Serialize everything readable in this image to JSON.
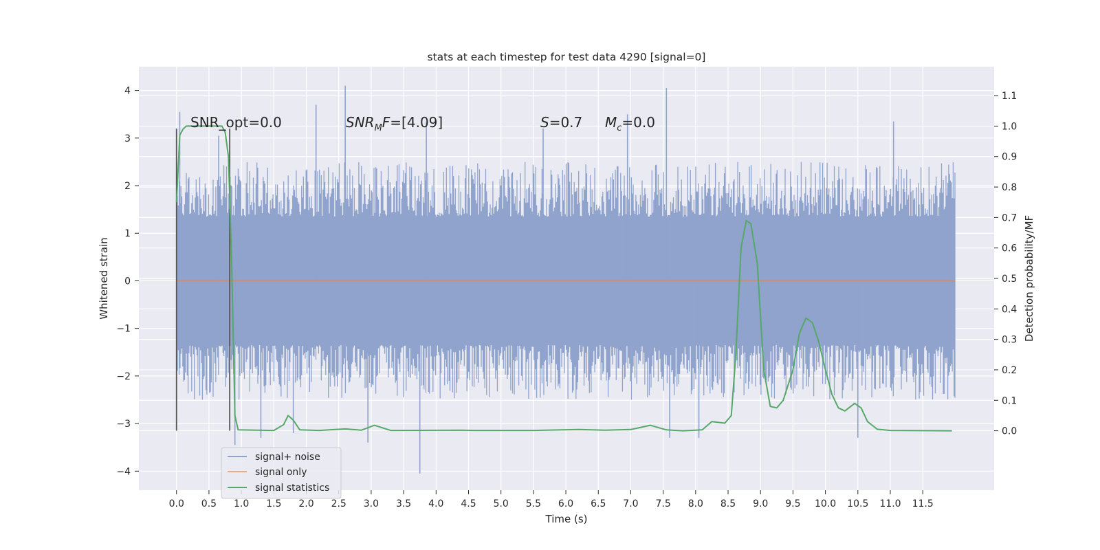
{
  "chart_data": {
    "type": "line",
    "title": "stats at each timestep for test data 4290 [signal=0]",
    "xlabel": "Time (s)",
    "ylabel_left": "Whitened strain",
    "ylabel_right": "Detection probability/MF",
    "xlim": [
      -0.58,
      12.6
    ],
    "ylim_left": [
      -4.4,
      4.5
    ],
    "ylim_right": [
      -0.195,
      1.195
    ],
    "x_ticks": [
      "0.0",
      "0.5",
      "1.0",
      "1.5",
      "2.0",
      "2.5",
      "3.0",
      "3.5",
      "4.0",
      "4.5",
      "5.0",
      "5.5",
      "6.0",
      "6.5",
      "7.0",
      "7.5",
      "8.0",
      "8.5",
      "9.0",
      "9.5",
      "10.0",
      "10.5",
      "11.0",
      "11.5"
    ],
    "y_left_ticks": [
      "4",
      "3",
      "2",
      "1",
      "0",
      "−1",
      "−2",
      "−3",
      "−4"
    ],
    "y_right_ticks": [
      "1.1",
      "1.0",
      "0.9",
      "0.8",
      "0.7",
      "0.6",
      "0.5",
      "0.4",
      "0.3",
      "0.2",
      "0.1",
      "0.0"
    ],
    "grid": true,
    "legend_position": "lower-left",
    "annotations": {
      "snr_opt": "SNR_opt=0.0",
      "snr_mf": "=[4.09]",
      "spin": "=0.7",
      "chirp_mass": "=0.0"
    },
    "noise_envelope": {
      "x_start": 0.0,
      "x_end": 12.0,
      "typical_low": -2.0,
      "typical_high": 2.0,
      "spikes": [
        {
          "x": 0.05,
          "y": 3.55
        },
        {
          "x": 0.65,
          "y": 3.05
        },
        {
          "x": 0.9,
          "y": -3.45
        },
        {
          "x": 1.3,
          "y": -3.3
        },
        {
          "x": 1.8,
          "y": -3.2
        },
        {
          "x": 2.15,
          "y": 3.7
        },
        {
          "x": 2.6,
          "y": 4.1
        },
        {
          "x": 2.95,
          "y": -3.4
        },
        {
          "x": 3.75,
          "y": -4.05
        },
        {
          "x": 3.85,
          "y": 3.35
        },
        {
          "x": 5.65,
          "y": 3.2
        },
        {
          "x": 6.95,
          "y": 3.5
        },
        {
          "x": 7.55,
          "y": 4.05
        },
        {
          "x": 7.6,
          "y": -3.3
        },
        {
          "x": 8.05,
          "y": -3.3
        },
        {
          "x": 10.5,
          "y": -3.3
        },
        {
          "x": 11.05,
          "y": 3.35
        }
      ]
    },
    "series": [
      {
        "name": "signal+ noise",
        "color": "#8fa3cd",
        "axis": "left"
      },
      {
        "name": "signal only",
        "color": "#dd8452",
        "axis": "left",
        "values": [
          [
            0.0,
            0.0
          ],
          [
            12.0,
            0.0
          ]
        ]
      },
      {
        "name": "signal statistics",
        "color": "#55a868",
        "axis": "right",
        "points": [
          [
            0.0,
            0.75
          ],
          [
            0.05,
            0.97
          ],
          [
            0.1,
            0.99
          ],
          [
            0.15,
            1.0
          ],
          [
            0.7,
            1.0
          ],
          [
            0.75,
            0.98
          ],
          [
            0.8,
            0.9
          ],
          [
            0.85,
            0.55
          ],
          [
            0.9,
            0.05
          ],
          [
            0.95,
            0.003
          ],
          [
            1.5,
            0.001
          ],
          [
            1.65,
            0.02
          ],
          [
            1.72,
            0.05
          ],
          [
            1.8,
            0.035
          ],
          [
            1.9,
            0.003
          ],
          [
            2.2,
            0.001
          ],
          [
            2.6,
            0.006
          ],
          [
            2.85,
            0.002
          ],
          [
            3.05,
            0.018
          ],
          [
            3.3,
            0.001
          ],
          [
            4.4,
            0.002
          ],
          [
            4.6,
            0.001
          ],
          [
            5.5,
            0.001
          ],
          [
            6.2,
            0.004
          ],
          [
            6.6,
            0.002
          ],
          [
            7.0,
            0.004
          ],
          [
            7.3,
            0.018
          ],
          [
            7.55,
            0.003
          ],
          [
            7.8,
            0.0
          ],
          [
            8.1,
            0.003
          ],
          [
            8.25,
            0.03
          ],
          [
            8.45,
            0.025
          ],
          [
            8.55,
            0.05
          ],
          [
            8.62,
            0.25
          ],
          [
            8.7,
            0.6
          ],
          [
            8.78,
            0.69
          ],
          [
            8.85,
            0.68
          ],
          [
            8.95,
            0.55
          ],
          [
            9.05,
            0.2
          ],
          [
            9.15,
            0.08
          ],
          [
            9.25,
            0.075
          ],
          [
            9.35,
            0.1
          ],
          [
            9.5,
            0.2
          ],
          [
            9.6,
            0.32
          ],
          [
            9.7,
            0.37
          ],
          [
            9.8,
            0.355
          ],
          [
            9.9,
            0.29
          ],
          [
            10.0,
            0.2
          ],
          [
            10.1,
            0.12
          ],
          [
            10.2,
            0.075
          ],
          [
            10.3,
            0.065
          ],
          [
            10.45,
            0.09
          ],
          [
            10.55,
            0.075
          ],
          [
            10.65,
            0.03
          ],
          [
            10.8,
            0.005
          ],
          [
            11.0,
            0.001
          ],
          [
            11.95,
            0.0
          ]
        ]
      }
    ],
    "injection_markers": [
      {
        "x": 0.0,
        "y_low": -3.15,
        "y_high": 3.2
      },
      {
        "x": 0.82,
        "y_low": -3.15,
        "y_high": 3.2
      }
    ]
  }
}
